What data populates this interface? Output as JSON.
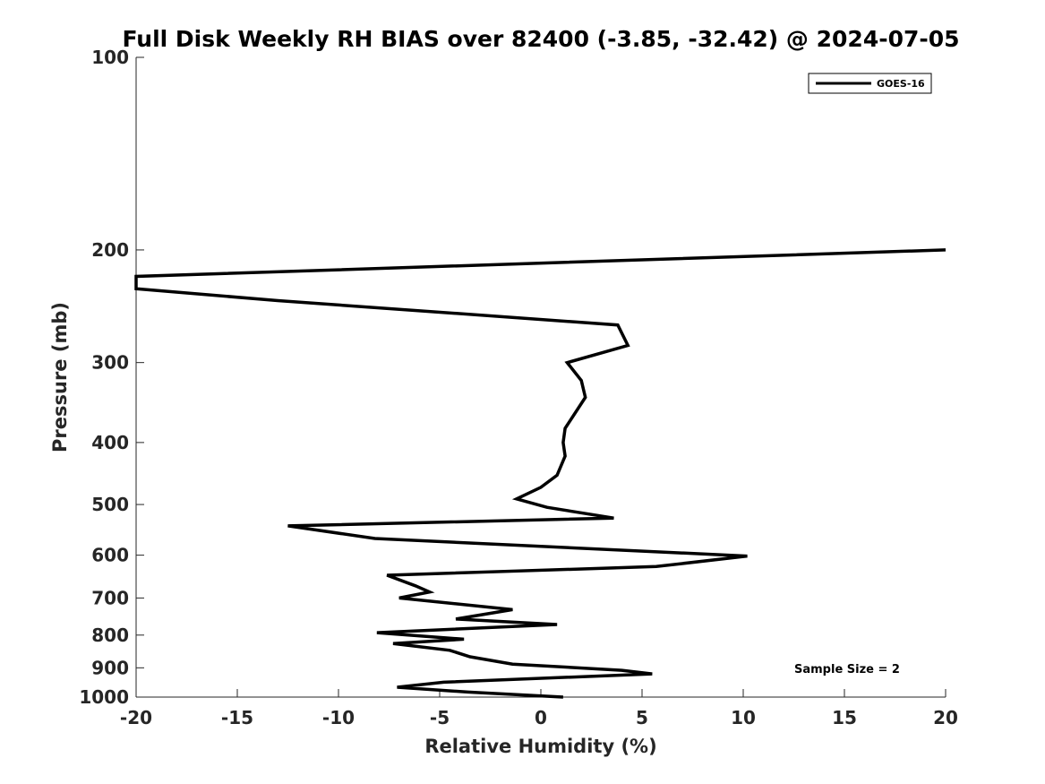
{
  "chart_data": {
    "type": "line",
    "title": "Full Disk Weekly RH BIAS over 82400 (-3.85, -32.42) @ 2024-07-05",
    "xlabel": "Relative Humidity (%)",
    "ylabel": "Pressure (mb)",
    "xlim": [
      -20,
      20
    ],
    "ylim": [
      100,
      1000
    ],
    "y_scale": "log",
    "y_reversed": true,
    "x_ticks": [
      -20,
      -15,
      -10,
      -5,
      0,
      5,
      10,
      15,
      20
    ],
    "y_ticks": [
      100,
      200,
      300,
      400,
      500,
      600,
      700,
      800,
      900,
      1000
    ],
    "grid": false,
    "legend": {
      "position": "top-right",
      "entries": [
        "GOES-16"
      ]
    },
    "annotation": "Sample Size = 2",
    "series": [
      {
        "name": "GOES-16",
        "color": "#000000",
        "points": [
          [
            20.0,
            200
          ],
          [
            -20.0,
            220
          ],
          [
            -20.0,
            230
          ],
          [
            -13.0,
            240
          ],
          [
            3.8,
            262
          ],
          [
            4.3,
            282
          ],
          [
            1.3,
            300
          ],
          [
            2.0,
            320
          ],
          [
            2.2,
            340
          ],
          [
            1.2,
            380
          ],
          [
            1.1,
            400
          ],
          [
            1.2,
            420
          ],
          [
            0.8,
            450
          ],
          [
            0.0,
            470
          ],
          [
            -1.2,
            490
          ],
          [
            0.3,
            505
          ],
          [
            3.6,
            525
          ],
          [
            -12.5,
            540
          ],
          [
            -8.2,
            565
          ],
          [
            10.2,
            602
          ],
          [
            5.7,
            625
          ],
          [
            -7.6,
            645
          ],
          [
            -6.2,
            670
          ],
          [
            -5.5,
            685
          ],
          [
            -7.0,
            700
          ],
          [
            -1.4,
            730
          ],
          [
            -4.2,
            755
          ],
          [
            0.8,
            770
          ],
          [
            -8.1,
            793
          ],
          [
            -3.8,
            812
          ],
          [
            -7.3,
            825
          ],
          [
            -4.5,
            845
          ],
          [
            -3.5,
            865
          ],
          [
            -1.4,
            888
          ],
          [
            4.0,
            908
          ],
          [
            5.5,
            920
          ],
          [
            -4.8,
            948
          ],
          [
            -7.1,
            965
          ],
          [
            -3.6,
            982
          ],
          [
            1.1,
            1000
          ]
        ]
      }
    ]
  }
}
